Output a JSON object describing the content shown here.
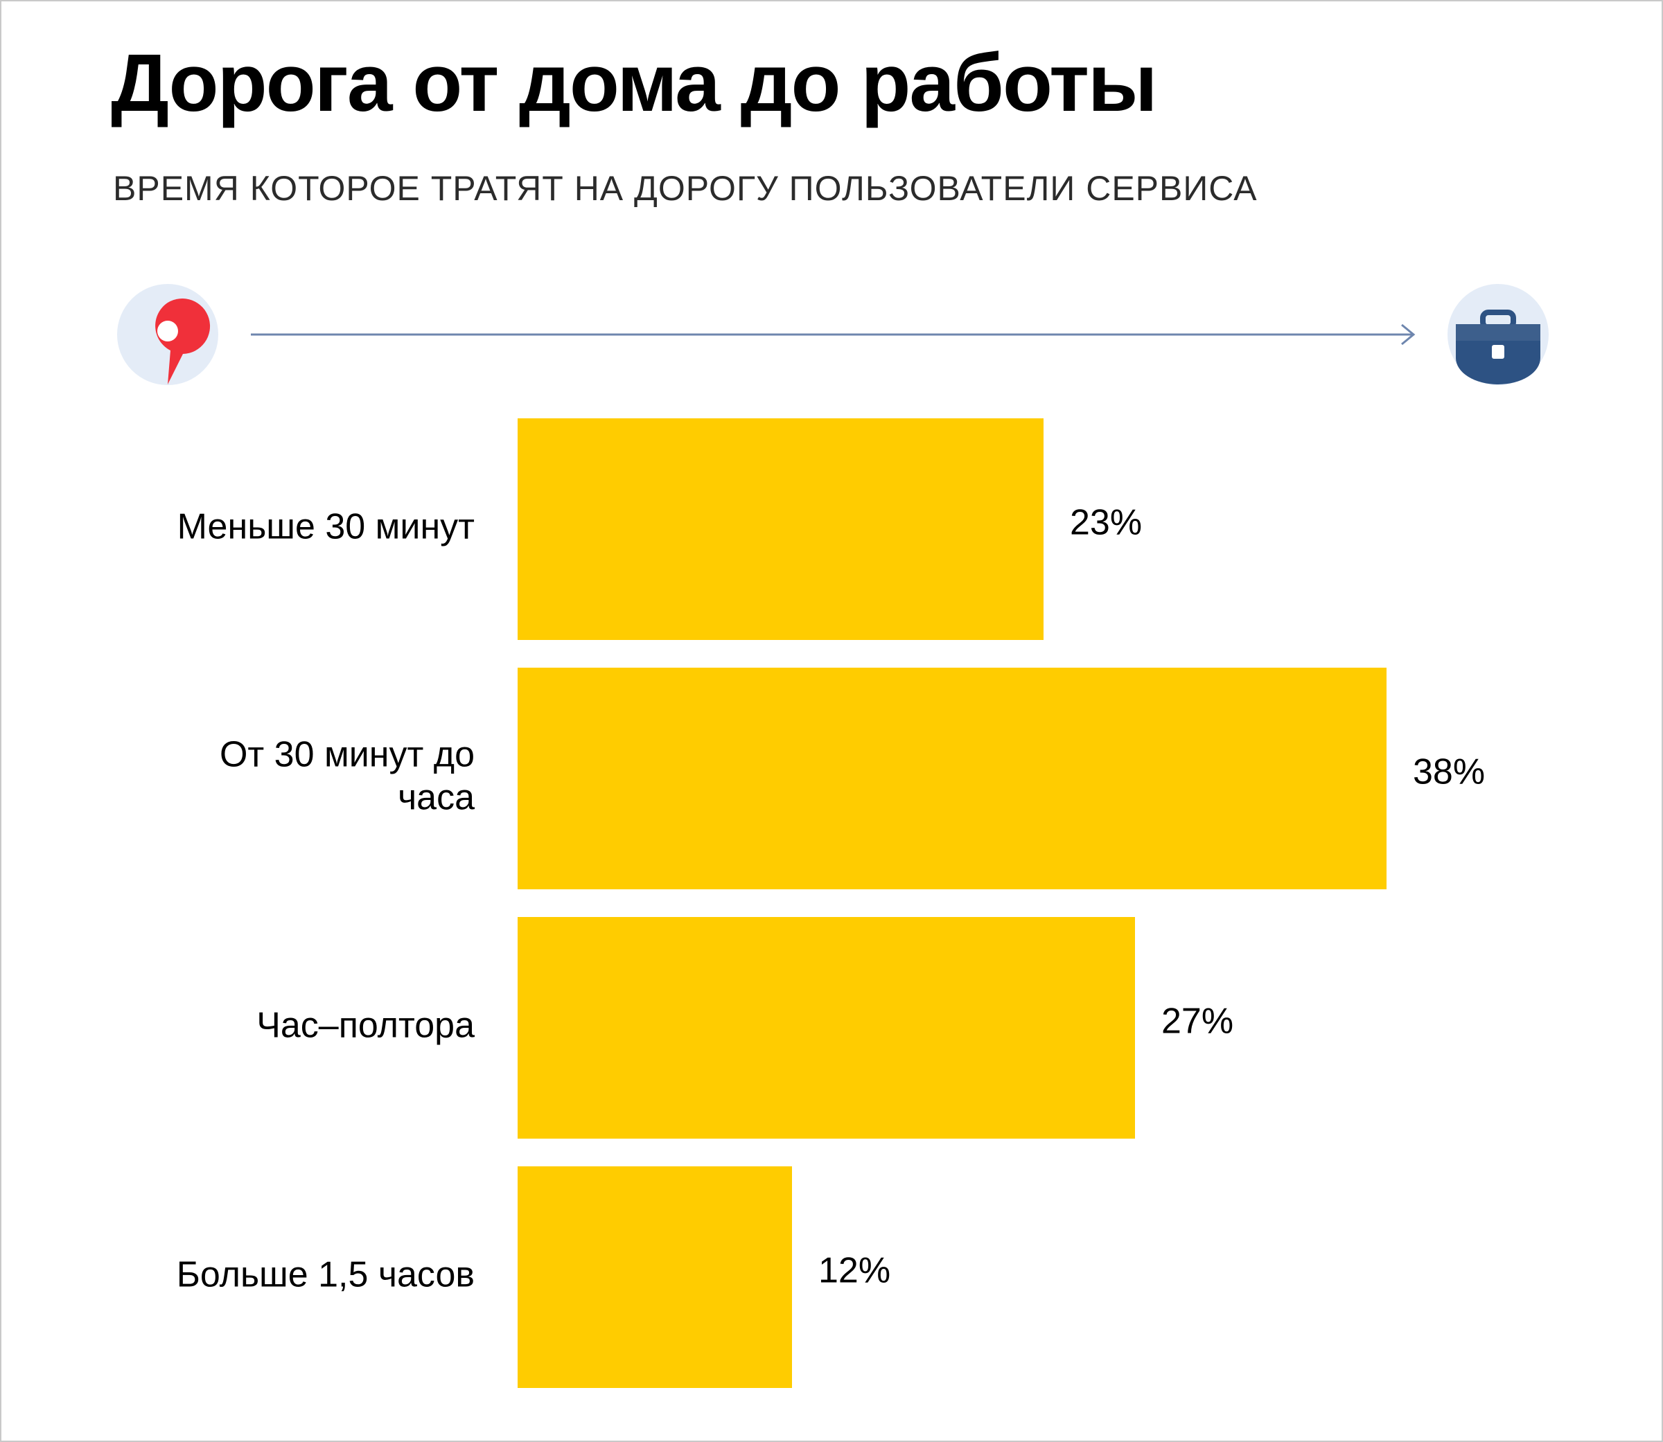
{
  "chart_data": {
    "type": "bar",
    "orientation": "horizontal",
    "title": "Дорога от дома до работы",
    "subtitle": "ВРЕМЯ КОТОРОЕ ТРАТЯТ НА ДОРОГУ ПОЛЬЗОВАТЕЛИ СЕРВИСА",
    "categories": [
      [
        "Меньше 30 минут"
      ],
      [
        "От 30 минут до",
        "часа"
      ],
      [
        "Час–полтора"
      ],
      [
        "Больше 1,5 часов"
      ]
    ],
    "values": [
      23,
      38,
      27,
      12
    ],
    "value_labels": [
      "23%",
      "38%",
      "27%",
      "12%"
    ],
    "unit": "%",
    "bar_color": "#FFCC00",
    "grid": false,
    "legend": "none"
  },
  "route": {
    "start_icon": "map-pin-icon",
    "end_icon": "briefcase-icon",
    "line_color": "#6E86AE",
    "pin_color": "#F0303A",
    "circle_color": "#E4ECF7",
    "briefcase_color": "#2D5283"
  }
}
